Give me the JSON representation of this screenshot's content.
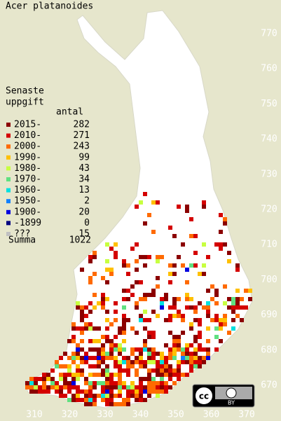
{
  "title": "Acer platanoides",
  "legend": {
    "heading": [
      "Senaste",
      "uppgift"
    ],
    "count_header": "antal",
    "entries": [
      {
        "label": "2015-",
        "count": 282,
        "color": "#8b0000"
      },
      {
        "label": "2010-",
        "count": 271,
        "color": "#d40000"
      },
      {
        "label": "2000-",
        "count": 243,
        "color": "#ff6a00"
      },
      {
        "label": "1990-",
        "count": 99,
        "color": "#ffc000"
      },
      {
        "label": "1980-",
        "count": 43,
        "color": "#c8ff40"
      },
      {
        "label": "1970-",
        "count": 34,
        "color": "#60e080"
      },
      {
        "label": "1960-",
        "count": 13,
        "color": "#00e0e0"
      },
      {
        "label": "1950-",
        "count": 2,
        "color": "#1080ff"
      },
      {
        "label": "1900-",
        "count": 20,
        "color": "#0000e0"
      },
      {
        "label": "-1899",
        "count": 0,
        "color": "#000080"
      },
      {
        "label": "???",
        "count": 15,
        "color": "#c0c0c0"
      }
    ],
    "total_label": "Summa",
    "total": 1022
  },
  "x_labels": [
    "310",
    "320",
    "330",
    "340",
    "350",
    "360",
    "370"
  ],
  "y_labels": [
    "770",
    "760",
    "750",
    "740",
    "730",
    "720",
    "710",
    "700",
    "690",
    "680",
    "670"
  ],
  "license": {
    "badge": "cc",
    "by": "BY"
  }
}
